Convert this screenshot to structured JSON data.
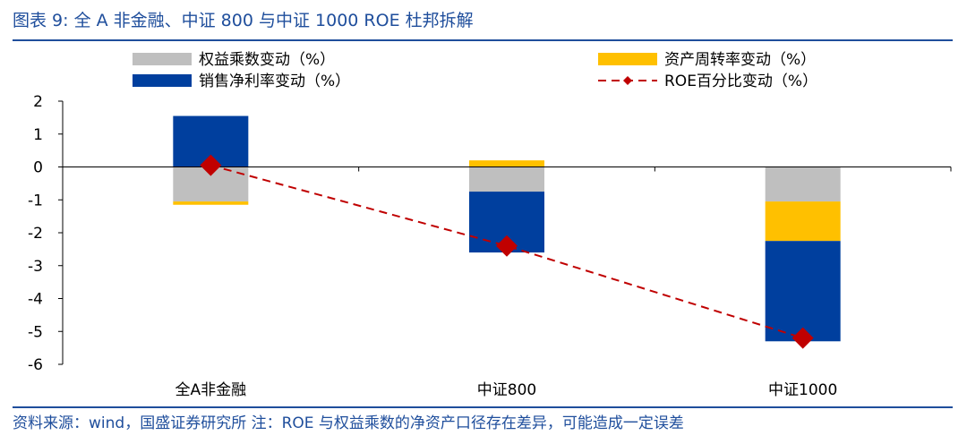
{
  "figure_title": "图表 9:  全 A 非金融、中证 800 与中证 1000 ROE 杜邦拆解",
  "source_note": "资料来源：wind，国盛证券研究所  注：ROE 与权益乘数的净资产口径存在差异，可能造成一定误差",
  "colors": {
    "equity_multiplier": "#bfbfbf",
    "asset_turnover": "#ffc000",
    "net_margin": "#003f9e",
    "roe": "#c00000",
    "accent": "#1f4e9c"
  },
  "chart_data": {
    "type": "bar",
    "stacked": true,
    "categories": [
      "全A非金融",
      "中证800",
      "中证1000"
    ],
    "series": [
      {
        "name": "权益乘数变动（%）",
        "kind": "bar",
        "color_key": "equity_multiplier",
        "values": [
          -1.05,
          -0.75,
          -1.05
        ]
      },
      {
        "name": "资产周转率变动（%）",
        "kind": "bar",
        "color_key": "asset_turnover",
        "values": [
          -0.1,
          0.2,
          -1.2
        ]
      },
      {
        "name": "销售净利率变动（%）",
        "kind": "bar",
        "color_key": "net_margin",
        "values": [
          1.55,
          -1.85,
          -3.05
        ]
      },
      {
        "name": "ROE百分比变动（%）",
        "kind": "line",
        "color_key": "roe",
        "values": [
          0.05,
          -2.4,
          -5.2
        ]
      }
    ],
    "ylim": [
      -6,
      2
    ],
    "yticks": [
      "2",
      "1",
      "0",
      "-1",
      "-2",
      "-3",
      "-4",
      "-5",
      "-6"
    ],
    "legend_position": "top"
  }
}
